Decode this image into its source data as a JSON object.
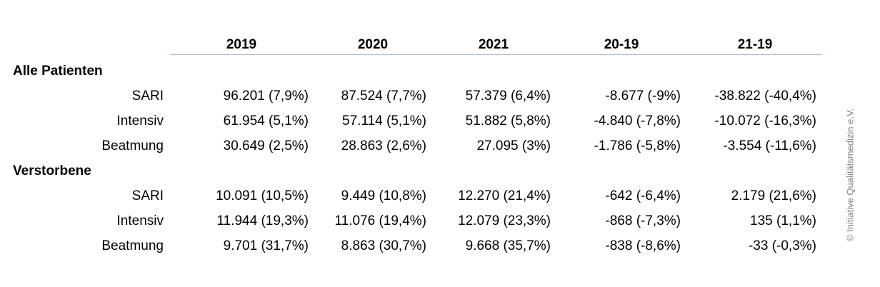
{
  "table": {
    "columns": [
      "2019",
      "2020",
      "2021",
      "20-19",
      "21-19"
    ],
    "groups": [
      {
        "title": "Alle Patienten",
        "rows": [
          {
            "label": "SARI",
            "cells": [
              "96.201 (7,9%)",
              "87.524 (7,7%)",
              "57.379 (6,4%)",
              "-8.677 (-9%)",
              "-38.822 (-40,4%)"
            ]
          },
          {
            "label": "Intensiv",
            "cells": [
              "61.954 (5,1%)",
              "57.114 (5,1%)",
              "51.882 (5,8%)",
              "-4.840 (-7,8%)",
              "-10.072 (-16,3%)"
            ]
          },
          {
            "label": "Beatmung",
            "cells": [
              "30.649 (2,5%)",
              "28.863 (2,6%)",
              "27.095 (3%)",
              "-1.786 (-5,8%)",
              "-3.554 (-11,6%)"
            ]
          }
        ]
      },
      {
        "title": "Verstorbene",
        "rows": [
          {
            "label": "SARI",
            "cells": [
              "10.091 (10,5%)",
              "9.449 (10,8%)",
              "12.270 (21,4%)",
              "-642 (-6,4%)",
              "2.179 (21,6%)"
            ]
          },
          {
            "label": "Intensiv",
            "cells": [
              "11.944 (19,3%)",
              "11.076 (19,4%)",
              "12.079 (23,3%)",
              "-868 (-7,3%)",
              "135 (1,1%)"
            ]
          },
          {
            "label": "Beatmung",
            "cells": [
              "9.701 (31,7%)",
              "8.863 (30,7%)",
              "9.668 (35,7%)",
              "-838 (-8,6%)",
              "-33 (-0,3%)"
            ]
          }
        ]
      }
    ]
  },
  "copyright": "© Initiative Qualitätsmedizin e.V."
}
